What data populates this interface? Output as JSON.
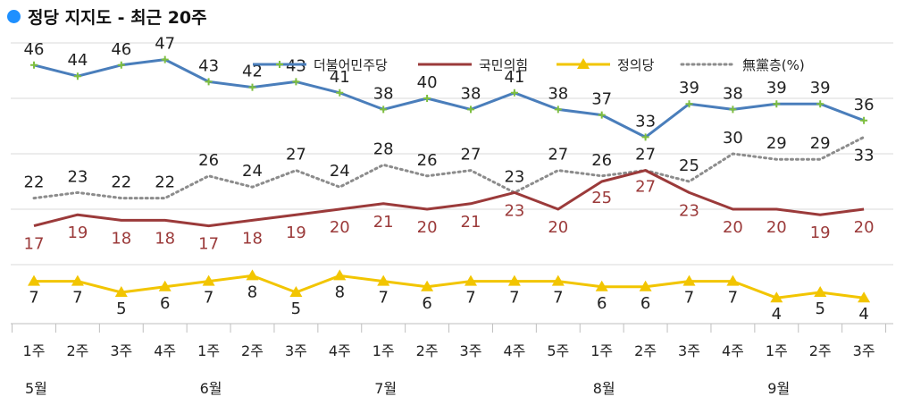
{
  "title": "정당 지지도 - 최근 20주",
  "colors": {
    "title_dot": "#1e90ff",
    "democratic": "#4a7ebb",
    "ppp": "#9b3a3a",
    "justice": "#f2c500",
    "none": "#8c8c8c"
  },
  "chart_data": {
    "type": "line",
    "title": "정당 지지도 - 최근 20주",
    "week_labels": [
      "1주",
      "2주",
      "3주",
      "4주",
      "1주",
      "2주",
      "3주",
      "4주",
      "1주",
      "2주",
      "3주",
      "4주",
      "5주",
      "1주",
      "2주",
      "3주",
      "4주",
      "1주",
      "2주",
      "3주"
    ],
    "months": [
      {
        "label": "5월",
        "start_index": 0
      },
      {
        "label": "6월",
        "start_index": 4
      },
      {
        "label": "7월",
        "start_index": 8
      },
      {
        "label": "8월",
        "start_index": 13
      },
      {
        "label": "9월",
        "start_index": 17
      }
    ],
    "ylim": [
      0,
      50
    ],
    "grid": true,
    "legend_position": "top-right",
    "series": [
      {
        "name": "더불어민주당",
        "key": "democratic",
        "marker": "plus",
        "values": [
          46,
          44,
          46,
          47,
          43,
          42,
          43,
          41,
          38,
          40,
          38,
          41,
          38,
          37,
          33,
          39,
          38,
          39,
          39,
          36
        ]
      },
      {
        "name": "국민의힘",
        "key": "ppp",
        "marker": "none",
        "values": [
          17,
          19,
          18,
          18,
          17,
          18,
          19,
          20,
          21,
          20,
          21,
          23,
          20,
          25,
          27,
          23,
          20,
          20,
          19,
          20
        ]
      },
      {
        "name": "정의당",
        "key": "justice",
        "marker": "triangle",
        "values": [
          7,
          7,
          5,
          6,
          7,
          8,
          5,
          8,
          7,
          6,
          7,
          7,
          7,
          6,
          6,
          7,
          7,
          4,
          5,
          4
        ]
      },
      {
        "name": "無黨층(%)",
        "key": "none",
        "marker": "none",
        "dashed": true,
        "values": [
          22,
          23,
          22,
          22,
          26,
          24,
          27,
          24,
          28,
          26,
          27,
          23,
          27,
          26,
          27,
          25,
          30,
          29,
          29,
          33
        ]
      }
    ]
  }
}
